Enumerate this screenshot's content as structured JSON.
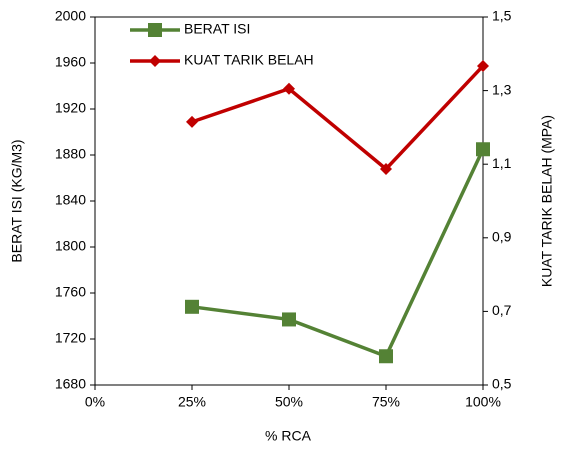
{
  "chart_data": {
    "type": "line",
    "x": [
      25,
      50,
      75,
      100
    ],
    "xlim": [
      0,
      100
    ],
    "xticks": [
      {
        "value": 0,
        "label": "0%"
      },
      {
        "value": 25,
        "label": "25%"
      },
      {
        "value": 50,
        "label": "50%"
      },
      {
        "value": 75,
        "label": "75%"
      },
      {
        "value": 100,
        "label": "100%"
      }
    ],
    "x_label": "% RCA",
    "y_label": "BERAT ISI (KG/M3)",
    "y2_label": "KUAT TARIK BELAH (MPA)",
    "ylim": [
      1680,
      2000
    ],
    "yticks": [
      1680,
      1720,
      1760,
      1800,
      1840,
      1880,
      1920,
      1960,
      2000
    ],
    "y2lim": [
      0.5,
      1.5
    ],
    "y2ticks": [
      {
        "value": 0.5,
        "label": "0,5"
      },
      {
        "value": 0.7,
        "label": "0,7"
      },
      {
        "value": 0.9,
        "label": "0,9"
      },
      {
        "value": 1.1,
        "label": "1,1"
      },
      {
        "value": 1.3,
        "label": "1,3"
      },
      {
        "value": 1.5,
        "label": "1,5"
      }
    ],
    "legend": "upper left",
    "series": [
      {
        "name": "BERAT ISI",
        "color": "#548235",
        "marker": "square",
        "values": [
          1748,
          1737,
          1705,
          1885
        ]
      },
      {
        "name": "KUAT TARIK BELAH",
        "color": "#c00000",
        "marker": "diamond",
        "axis": "y2",
        "values": [
          1.215,
          1.305,
          1.087,
          1.367
        ]
      }
    ]
  }
}
